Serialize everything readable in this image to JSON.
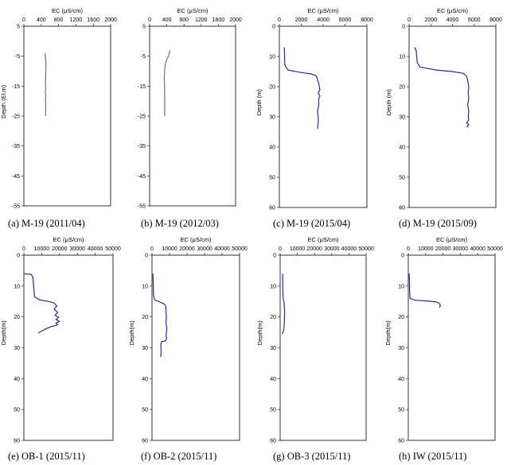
{
  "chart_data": [
    {
      "type": "line",
      "caption": "(a) M-19 (2011/04)",
      "xlabel": "EC (μS/cm)",
      "ylabel": "Depth (El.m)",
      "xlim": [
        0,
        2000
      ],
      "ylim": [
        5,
        -55
      ],
      "xticks": [
        "0",
        "400",
        "800",
        "1200",
        "1600",
        "2000"
      ],
      "yticks": [
        "5",
        "-5",
        "-15",
        "-25",
        "-35",
        "-45",
        "-55"
      ],
      "series": [
        {
          "color": "#6e6e6e",
          "x": [
            490,
            500,
            510,
            505,
            500,
            498,
            505,
            495,
            502,
            500,
            498,
            505,
            500,
            502,
            500
          ],
          "y": [
            -4,
            -6,
            -8,
            -10,
            -12,
            -14,
            -16,
            -17,
            -18,
            -19,
            -20,
            -21,
            -22,
            -23,
            -25
          ]
        }
      ]
    },
    {
      "type": "line",
      "caption": "(b) M-19 (2012/03)",
      "xlabel": "EC (μS/cm)",
      "ylabel": "",
      "xlim": [
        0,
        2000
      ],
      "ylim": [
        5,
        -55
      ],
      "xticks": [
        "0",
        "400",
        "800",
        "1200",
        "1600",
        "2000"
      ],
      "yticks": [
        "5",
        "-5",
        "-15",
        "-25",
        "-35",
        "-45",
        "-55"
      ],
      "series": [
        {
          "color": "#6e6e6e",
          "x": [
            470,
            460,
            440,
            400,
            360,
            350,
            340,
            345,
            350,
            350,
            350,
            350
          ],
          "y": [
            -3,
            -4,
            -5,
            -6,
            -8,
            -10,
            -12,
            -14,
            -17,
            -20,
            -23,
            -25
          ]
        }
      ]
    },
    {
      "type": "line",
      "caption": "(c) M-19 (2015/04)",
      "xlabel": "EC (μS/cm)",
      "ylabel": "Depth (m)",
      "xlim": [
        0,
        8000
      ],
      "ylim": [
        0,
        60
      ],
      "xticks": [
        "0",
        "2000",
        "4000",
        "6000",
        "8000"
      ],
      "yticks": [
        "0",
        "10",
        "20",
        "30",
        "40",
        "50",
        "60"
      ],
      "series": [
        {
          "color": "#2a2a8c",
          "x": [
            450,
            470,
            480,
            500,
            800,
            1800,
            2900,
            3300,
            3450,
            3500,
            3600,
            3650,
            3700,
            3550,
            3700,
            3600,
            3600,
            3500,
            3550,
            3550,
            3500
          ],
          "y": [
            7,
            9,
            11,
            13,
            14.5,
            15.2,
            15.8,
            16.3,
            17,
            18,
            19,
            20,
            21,
            22,
            23,
            24,
            26,
            28,
            30,
            32,
            34
          ]
        }
      ]
    },
    {
      "type": "line",
      "caption": "(d) M-19 (2015/09)",
      "xlabel": "EC (μS/cm)",
      "ylabel": "Depth (m)",
      "xlim": [
        0,
        8000
      ],
      "ylim": [
        0,
        60
      ],
      "xticks": [
        "0",
        "2000",
        "4000",
        "6000",
        "8000"
      ],
      "yticks": [
        "0",
        "10",
        "20",
        "30",
        "40",
        "50",
        "60"
      ],
      "series": [
        {
          "color": "#2a2a8c",
          "x": [
            500,
            650,
            700,
            750,
            1000,
            2500,
            4000,
            5000,
            5300,
            5400,
            5500,
            5450,
            5500,
            5400,
            5500,
            5450,
            5500,
            5300,
            5500,
            5350,
            5450
          ],
          "y": [
            7,
            8,
            10,
            12,
            13.5,
            14.5,
            15,
            15.6,
            16.5,
            18,
            20,
            22,
            24,
            26,
            28,
            30,
            31,
            32,
            32.5,
            33,
            33.5
          ]
        }
      ]
    },
    {
      "type": "line",
      "caption": "(e) OB-1 (2015/11)",
      "xlabel": "EC (μS/cm)",
      "ylabel": "Depth(m)",
      "xlim": [
        0,
        50000
      ],
      "ylim": [
        0,
        60
      ],
      "xticks": [
        "0",
        "10000",
        "20000",
        "30000",
        "40000",
        "50000"
      ],
      "yticks": [
        "0",
        "10",
        "20",
        "30",
        "40",
        "50",
        "60"
      ],
      "series": [
        {
          "color": "#2a2a8c",
          "x": [
            0,
            4000,
            5000,
            5500,
            6000,
            9000,
            14000,
            17000,
            18500,
            17000,
            19000,
            17500,
            19500,
            18000,
            20000,
            18000,
            19000,
            15000,
            12000,
            10000,
            8000
          ],
          "y": [
            6,
            6.2,
            7,
            10,
            13.5,
            14.5,
            15,
            15.5,
            16.5,
            17.5,
            18.5,
            19.5,
            20.2,
            20.8,
            21.5,
            22,
            22.5,
            23.2,
            24,
            24.6,
            25.2
          ]
        }
      ]
    },
    {
      "type": "line",
      "caption": "(f) OB-2 (2015/11)",
      "xlabel": "EC (μS/cm)",
      "ylabel": "Depth(m)",
      "xlim": [
        0,
        50000
      ],
      "ylim": [
        0,
        60
      ],
      "xticks": [
        "0",
        "10000",
        "20000",
        "30000",
        "40000",
        "50000"
      ],
      "yticks": [
        "0",
        "10",
        "20",
        "30",
        "40",
        "50",
        "60"
      ],
      "series": [
        {
          "color": "#2a2a8c",
          "x": [
            500,
            700,
            800,
            1500,
            4500,
            7000,
            7800,
            8000,
            8200,
            8000,
            8500,
            8000,
            8300,
            8000,
            7500,
            5500,
            5000,
            5200,
            5000
          ],
          "y": [
            6,
            9,
            13,
            14.5,
            15.2,
            15.8,
            16.5,
            18,
            20,
            22,
            24,
            26,
            27,
            27.5,
            27.8,
            28,
            29,
            31,
            33
          ]
        }
      ]
    },
    {
      "type": "line",
      "caption": "(g) OB-3 (2015/11)",
      "xlabel": "EC (μS/cm)",
      "ylabel": "Depth(m)",
      "xlim": [
        0,
        50000
      ],
      "ylim": [
        0,
        60
      ],
      "xticks": [
        "0",
        "10000",
        "20000",
        "30000",
        "40000",
        "50000"
      ],
      "yticks": [
        "0",
        "10",
        "20",
        "30",
        "40",
        "50",
        "60"
      ],
      "series": [
        {
          "color": "#2a2a8c",
          "x": [
            1500,
            1500,
            1600,
            1700,
            2200,
            2500,
            2600,
            2500,
            2300,
            2000,
            1200
          ],
          "y": [
            6,
            9,
            12,
            14,
            15,
            17,
            19,
            21,
            23,
            24.5,
            25.5
          ]
        }
      ]
    },
    {
      "type": "line",
      "caption": "(h) IW (2015/11)",
      "xlabel": "EC (μS/cm)",
      "ylabel": "Depth(m)",
      "xlim": [
        0,
        50000
      ],
      "ylim": [
        0,
        60
      ],
      "xticks": [
        "0",
        "10000",
        "20000",
        "30000",
        "40000",
        "50000"
      ],
      "yticks": [
        "0",
        "10",
        "20",
        "30",
        "40",
        "50",
        "60"
      ],
      "series": [
        {
          "color": "#2a2a8c",
          "x": [
            500,
            700,
            800,
            1000,
            4000,
            12000,
            16500,
            18000,
            18500,
            18000
          ],
          "y": [
            6,
            9,
            12,
            14,
            14.6,
            14.9,
            15.2,
            15.7,
            16.3,
            17
          ]
        }
      ]
    }
  ]
}
